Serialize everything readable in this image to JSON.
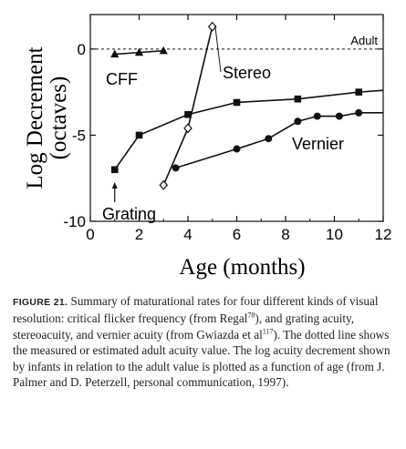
{
  "chart_data": {
    "type": "line",
    "xlabel": "Age (months)",
    "ylabel": "Log Decrement (octaves)",
    "xlim": [
      0,
      12
    ],
    "ylim": [
      -10,
      2
    ],
    "xticks": [
      0,
      2,
      4,
      6,
      8,
      10,
      12
    ],
    "yticks": [
      0,
      -5,
      -10
    ],
    "grid": false,
    "reference_line": {
      "label": "Adult",
      "y": 0
    },
    "series": [
      {
        "name": "CFF",
        "marker": "triangle",
        "x": [
          1,
          2,
          3
        ],
        "y": [
          -0.3,
          -0.2,
          -0.1
        ]
      },
      {
        "name": "Stereo",
        "marker": "open-diamond",
        "x": [
          3,
          4,
          5
        ],
        "y": [
          -7.9,
          -4.6,
          1.3
        ]
      },
      {
        "name": "Grating",
        "marker": "square",
        "x": [
          1,
          2,
          4,
          6,
          8.5,
          11,
          12
        ],
        "y": [
          -7.0,
          -5.0,
          -3.8,
          -3.1,
          -2.9,
          -2.5,
          -2.4
        ]
      },
      {
        "name": "Vernier",
        "marker": "circle",
        "x": [
          3.5,
          6,
          7.3,
          8.5,
          9.3,
          10.2,
          11,
          12
        ],
        "y": [
          -6.9,
          -5.8,
          -5.2,
          -4.2,
          -3.9,
          -3.9,
          -3.7,
          -3.7
        ]
      }
    ],
    "annotations": [
      {
        "text": "CFF"
      },
      {
        "text": "Stereo"
      },
      {
        "text": "Vernier"
      },
      {
        "text": "Grating"
      }
    ]
  },
  "caption": {
    "label": "FIGURE 21.",
    "part1": " Summary of maturational rates for four different kinds of visual resolution: critical flicker frequency (from Regal",
    "ref1": "78",
    "part2": "), and grating acuity, stereoacuity, and vernier acuity (from Gwiazda et al",
    "ref2": "117",
    "part3": "). The dotted line shows the measured or estimated adult acuity value. The log acuity decrement shown by infants in relation to the adult value is plotted as a function of age (from J. Palmer and D. Peterzell, personal communication, 1997)."
  }
}
